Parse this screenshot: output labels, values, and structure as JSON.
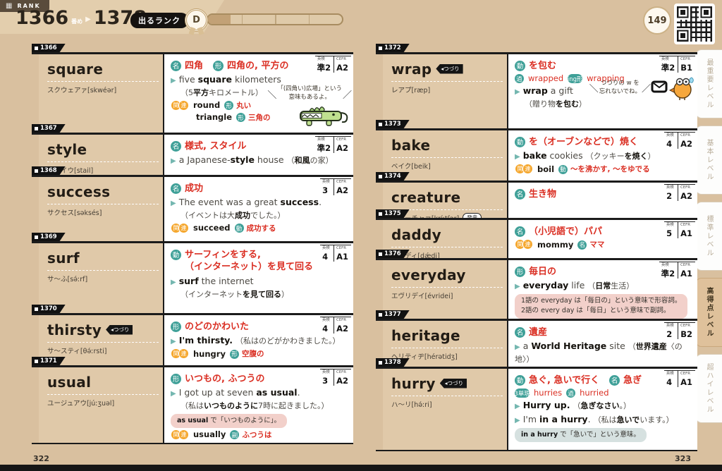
{
  "header": {
    "rank_label": "RANK",
    "range_start": "1366",
    "range_start_suffix": "番め",
    "range_arrow": "▶",
    "range_end": "1378",
    "range_end_suffix": "番め",
    "deru_rank_label": "出るランク",
    "deru_rank_value": "D",
    "progress_percent": 17,
    "page_circle": "149"
  },
  "labels": {
    "eiken": "英検",
    "cefr": "CEFR"
  },
  "side_tabs": [
    {
      "label": "最重要レベル",
      "active": false
    },
    {
      "label": "基本レベル",
      "active": false
    },
    {
      "label": "標準レベル",
      "active": false
    },
    {
      "label": "高得点レベル",
      "active": true
    },
    {
      "label": "超ハイレベル",
      "active": false
    }
  ],
  "footer": {
    "left_page_number": "322",
    "right_page_number": "323"
  },
  "pages": {
    "left": {
      "entries": [
        {
          "id": "1366",
          "word": "square",
          "pron": "スクウェアァ[skwéər]",
          "eiken": "準2",
          "cefr": "A2",
          "blocks": [
            {
              "type": "meanings",
              "items": [
                {
                  "pos": "名",
                  "text": "四角"
                },
                {
                  "pos": "形",
                  "text": "四角の, 平方の"
                }
              ]
            },
            {
              "type": "example",
              "en": "five **square** kilometers",
              "ja": "（5**平方**キロメートル）",
              "break": true
            },
            {
              "type": "related",
              "items": [
                {
                  "word": "round",
                  "pos": "形",
                  "meaning": "丸い"
                },
                {
                  "word": "triangle",
                  "pos": "形",
                  "meaning": "三角の"
                }
              ]
            }
          ],
          "callout": {
            "art": "crocodile",
            "text": "「(四角い)広場」という\n意味もあるよ。"
          }
        },
        {
          "id": "1367",
          "word": "style",
          "pron": "スタイウ[stail]",
          "eiken": "準2",
          "cefr": "A2",
          "blocks": [
            {
              "type": "meanings",
              "items": [
                {
                  "pos": "名",
                  "text": "様式, スタイル"
                }
              ]
            },
            {
              "type": "example",
              "en": "a Japanese-**style** house",
              "ja": "（**和風**の家）",
              "break": false
            }
          ]
        },
        {
          "id": "1368",
          "word": "success",
          "pron": "サクセス[səksés]",
          "eiken": "3",
          "cefr": "A2",
          "blocks": [
            {
              "type": "meanings",
              "items": [
                {
                  "pos": "名",
                  "text": "成功"
                }
              ]
            },
            {
              "type": "example",
              "en": "The event was a great **success**.",
              "ja": "（イベントは大**成功**でした。）",
              "break": true
            },
            {
              "type": "related",
              "items": [
                {
                  "word": "succeed",
                  "pos": "動",
                  "meaning": "成功する"
                }
              ]
            }
          ]
        },
        {
          "id": "1369",
          "word": "surf",
          "pron": "サ〜ふ[sə́ːrf]",
          "eiken": "4",
          "cefr": "A1",
          "blocks": [
            {
              "type": "meanings",
              "items": [
                {
                  "pos": "動",
                  "text": "サーフィンをする,\n（インターネット）を見て回る"
                }
              ]
            },
            {
              "type": "example",
              "en": "**surf** the internet",
              "ja": "（インターネット**を見て回る**）",
              "break": true
            }
          ]
        },
        {
          "id": "1370",
          "word": "thirsty",
          "word_tag": "◂つづり",
          "pron": "サ〜スティ[θə́ːrsti]",
          "eiken": "4",
          "cefr": "A2",
          "blocks": [
            {
              "type": "meanings",
              "items": [
                {
                  "pos": "形",
                  "text": "のどのかわいた"
                }
              ]
            },
            {
              "type": "example",
              "en": "**I'm thirsty.**",
              "ja": "（私はのどがかわきました。）",
              "break": false
            },
            {
              "type": "related",
              "items": [
                {
                  "word": "hungry",
                  "pos": "形",
                  "meaning": "空腹の"
                }
              ]
            }
          ]
        },
        {
          "id": "1371",
          "word": "usual",
          "pron": "ユージュアウ[júːʒuəl]",
          "eiken": "3",
          "cefr": "A2",
          "blocks": [
            {
              "type": "meanings",
              "items": [
                {
                  "pos": "形",
                  "text": "いつもの, ふつうの"
                }
              ]
            },
            {
              "type": "example",
              "en": "I got up at seven **as usual**.",
              "ja": "（私は**いつものように**7時に起きました。）",
              "break": true
            },
            {
              "type": "note",
              "style": "pink",
              "text": "**as usual** で「いつものように」。"
            },
            {
              "type": "related",
              "items": [
                {
                  "word": "usually",
                  "pos": "副",
                  "meaning": "ふつうは"
                }
              ]
            }
          ]
        }
      ]
    },
    "right": {
      "entries": [
        {
          "id": "1372",
          "word": "wrap",
          "word_tag": "◂つづり",
          "pron": "レアプ[ræp]",
          "eiken": "準2",
          "cefr": "B1",
          "blocks": [
            {
              "type": "meanings",
              "items": [
                {
                  "pos": "動",
                  "text": "を包む"
                }
              ]
            },
            {
              "type": "forms",
              "items": [
                {
                  "tag": "過",
                  "text": "wrapped"
                },
                {
                  "tag": "ing形",
                  "text": "wrapping"
                }
              ]
            },
            {
              "type": "example",
              "en": "**wrap** a gift",
              "ja": "（贈り物**を包む**）",
              "break": true
            }
          ],
          "callout": {
            "art": "bird",
            "text": "つづりの w を\n忘れないでね。"
          }
        },
        {
          "id": "1373",
          "word": "bake",
          "pron": "ベイク[beik]",
          "eiken": "4",
          "cefr": "A2",
          "blocks": [
            {
              "type": "meanings",
              "items": [
                {
                  "pos": "動",
                  "text": "を（オーブンなどで）焼く"
                }
              ]
            },
            {
              "type": "example",
              "en": "**bake** cookies",
              "ja": "（クッキー**を焼く**）",
              "break": false
            },
            {
              "type": "related",
              "items": [
                {
                  "word": "boil",
                  "pos": "動",
                  "meaning": "〜を沸かす, 〜をゆでる"
                }
              ]
            }
          ]
        },
        {
          "id": "1374",
          "word": "creature",
          "pron": "クリーチャァ[kríːtʃər]",
          "pron_tag": "発音",
          "eiken": "2",
          "cefr": "A2",
          "blocks": [
            {
              "type": "meanings",
              "items": [
                {
                  "pos": "名",
                  "text": "生き物"
                }
              ]
            }
          ]
        },
        {
          "id": "1375",
          "word": "daddy",
          "pron": "デァディ[dǽdi]",
          "eiken": "5",
          "cefr": "A1",
          "blocks": [
            {
              "type": "meanings",
              "items": [
                {
                  "pos": "名",
                  "text": "（小児語で）パパ"
                }
              ]
            },
            {
              "type": "related",
              "items": [
                {
                  "word": "mommy",
                  "pos": "名",
                  "meaning": "ママ"
                }
              ]
            }
          ]
        },
        {
          "id": "1376",
          "word": "everyday",
          "pron": "エヴリデイ[évridei]",
          "eiken": "準2",
          "cefr": "A1",
          "blocks": [
            {
              "type": "meanings",
              "items": [
                {
                  "pos": "形",
                  "text": "毎日の"
                }
              ]
            },
            {
              "type": "example",
              "en": "**everyday** life",
              "ja": "（**日常**生活）",
              "break": false
            },
            {
              "type": "note",
              "style": "pink",
              "text": "1語の everyday は「毎日の」という意味で形容詞。\n2語の every day は「毎日」という意味で副詞。"
            }
          ]
        },
        {
          "id": "1377",
          "word": "heritage",
          "pron": "ヘリティヂ[hérətidʒ]",
          "eiken": "2",
          "cefr": "B2",
          "blocks": [
            {
              "type": "meanings",
              "items": [
                {
                  "pos": "名",
                  "text": "遺産"
                }
              ]
            },
            {
              "type": "example",
              "en": "a **World Heritage** site",
              "ja": "（**世界遺産**〈の地〉）",
              "break": false
            }
          ]
        },
        {
          "id": "1378",
          "word": "hurry",
          "word_tag": "◂つづり",
          "pron": "ハ〜リ[hə́ːri]",
          "eiken": "4",
          "cefr": "A1",
          "blocks": [
            {
              "type": "meanings",
              "items": [
                {
                  "pos": "動",
                  "text": "急ぐ, 急いで行く"
                },
                {
                  "pos": "名",
                  "text": "急ぎ"
                }
              ]
            },
            {
              "type": "forms",
              "items": [
                {
                  "tag": "3単現",
                  "text": "hurries"
                },
                {
                  "tag": "過",
                  "text": "hurried"
                }
              ]
            },
            {
              "type": "example",
              "en": "**Hurry up.**",
              "ja": "（**急ぎなさい**。）",
              "break": false
            },
            {
              "type": "example",
              "en": "I'm **in a hurry**.",
              "ja": "（私は**急いで**います。）",
              "break": false
            },
            {
              "type": "note",
              "style": "gray",
              "text": "**in a hurry** で「急いで」という意味。"
            }
          ]
        }
      ]
    }
  }
}
